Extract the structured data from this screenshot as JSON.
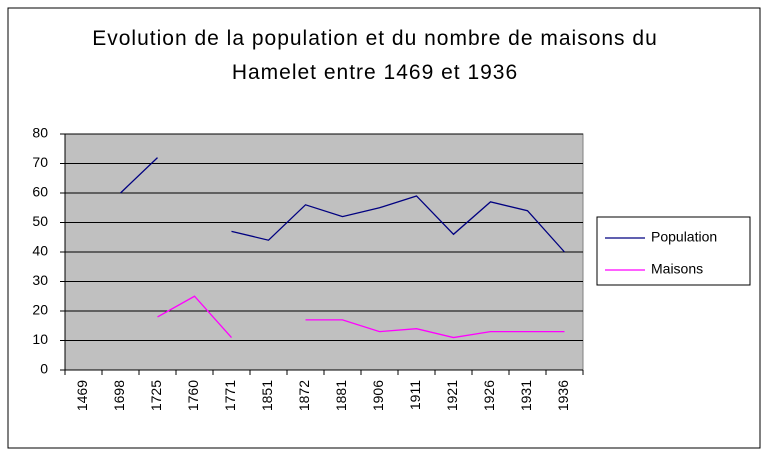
{
  "chart_data": {
    "type": "line",
    "title": "Evolution de la population et du nombre de maisons du Hamelet entre 1469 et 1936",
    "categories": [
      "1469",
      "1698",
      "1725",
      "1760",
      "1771",
      "1851",
      "1872",
      "1881",
      "1906",
      "1911",
      "1921",
      "1926",
      "1931",
      "1936"
    ],
    "series": [
      {
        "name": "Population",
        "color": "#000080",
        "values": [
          null,
          60,
          72,
          null,
          47,
          44,
          56,
          52,
          55,
          59,
          46,
          57,
          54,
          40
        ]
      },
      {
        "name": "Maisons",
        "color": "#ff00ff",
        "values": [
          null,
          null,
          18,
          25,
          11,
          null,
          17,
          17,
          13,
          14,
          11,
          13,
          13,
          13
        ]
      }
    ],
    "ylim": [
      0,
      80
    ],
    "yticks": [
      0,
      10,
      20,
      30,
      40,
      50,
      60,
      70,
      80
    ],
    "grid": true,
    "legend": "right"
  }
}
